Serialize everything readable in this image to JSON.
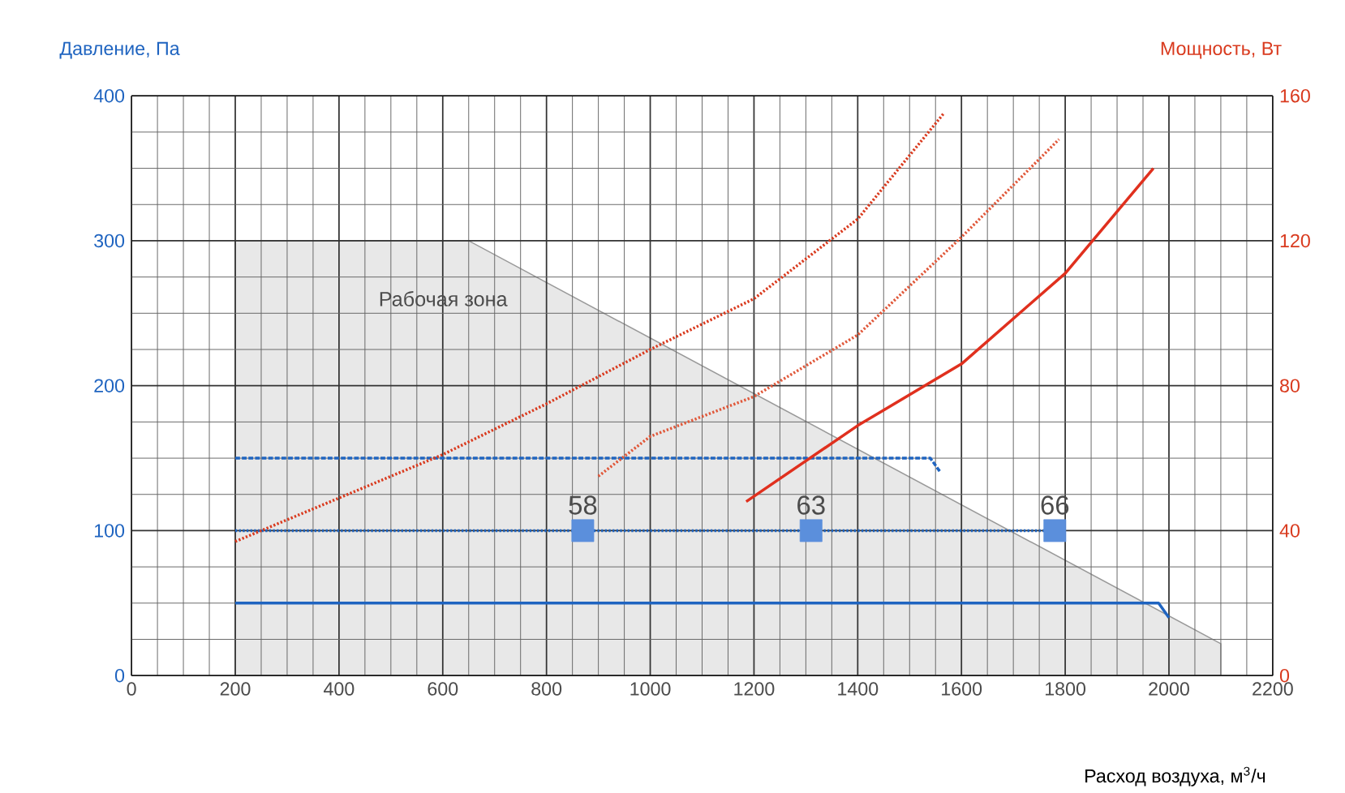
{
  "chart_data": {
    "type": "line",
    "xlabel": "Расход воздуха, м$^{3}$/ч",
    "ylabel": "Давление, Па",
    "y2label": "Мощность, Вт",
    "xlim": [
      0,
      2200
    ],
    "xticks": [
      0,
      200,
      400,
      600,
      800,
      1000,
      1200,
      1400,
      1600,
      1800,
      2000,
      2200
    ],
    "ylim": [
      0,
      400
    ],
    "yticks": [
      0,
      100,
      200,
      300,
      400
    ],
    "y2lim": [
      0,
      160
    ],
    "y2ticks": [
      0,
      40,
      80,
      120,
      160
    ],
    "grid": true,
    "annotations": [
      "Рабочая зона",
      {
        "text": "58",
        "x": 870,
        "y": 100
      },
      {
        "text": "63",
        "x": 1310,
        "y": 100
      },
      {
        "text": "66",
        "x": 1780,
        "y": 100
      }
    ],
    "series": [
      {
        "type": "area",
        "color": "#e8e8e8",
        "x": [
          200,
          650,
          2100
        ],
        "values": [
          300,
          300,
          22
        ]
      },
      {
        "color": "#1f64c0",
        "line_style": "solid",
        "x": [
          200,
          1980,
          2000
        ],
        "values": [
          50,
          50,
          40
        ]
      },
      {
        "color": "#1f64c0",
        "line_style": "dotted",
        "x": [
          200,
          1780
        ],
        "values": [
          100,
          100
        ]
      },
      {
        "color": "#1f64c0",
        "line_style": "dashed",
        "x": [
          200,
          1540,
          1560
        ],
        "values": [
          150,
          150,
          140
        ]
      },
      {
        "type": "scatter",
        "color": "#5b8fdc",
        "marker": "square",
        "x": [
          870,
          1310,
          1780
        ],
        "values": [
          100,
          100,
          100
        ]
      },
      {
        "axis": "y2",
        "color": "#d93a1e",
        "line_style": "dotted",
        "x": [
          200,
          400,
          600,
          800,
          1000,
          1200,
          1400,
          1565
        ],
        "values": [
          37,
          49,
          61,
          75,
          90,
          104,
          126,
          155
        ]
      },
      {
        "axis": "y2",
        "color": "#e0583a",
        "line_style": "dotted",
        "x": [
          900,
          1000,
          1200,
          1400,
          1600,
          1788
        ],
        "values": [
          55,
          66,
          77,
          94,
          121,
          148
        ]
      },
      {
        "axis": "y2",
        "color": "#e0301e",
        "line_style": "solid",
        "x": [
          1185,
          1400,
          1600,
          1800,
          1970
        ],
        "values": [
          48,
          69,
          86,
          111,
          140
        ]
      }
    ]
  }
}
